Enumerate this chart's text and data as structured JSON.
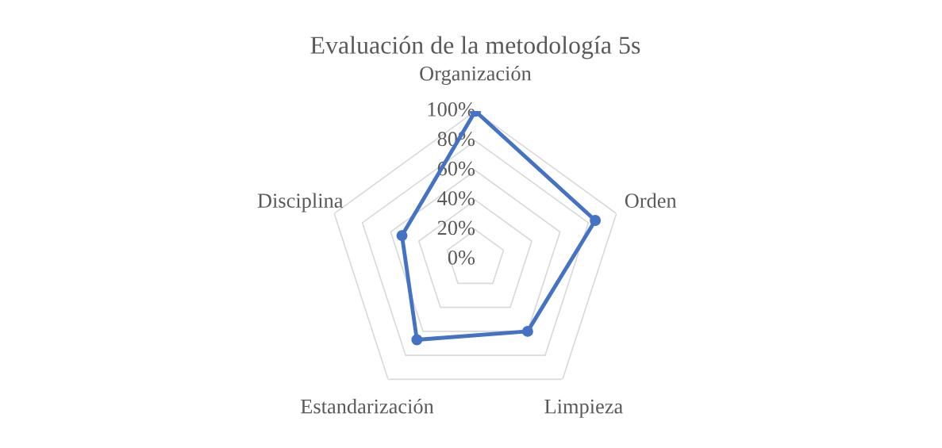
{
  "chart_data": {
    "type": "radar",
    "title": "Evaluación de la metodología 5s",
    "categories": [
      "Organización",
      "Orden",
      "Limpieza",
      "Estandarización",
      "Disciplina"
    ],
    "series": [
      {
        "color": "#4472c4",
        "values": [
          100,
          85,
          60,
          67,
          52
        ]
      }
    ],
    "ylim": [
      0,
      100
    ],
    "yticks": [
      {
        "value": 0,
        "label": "0%"
      },
      {
        "value": 20,
        "label": "20%"
      },
      {
        "value": 40,
        "label": "40%"
      },
      {
        "value": 60,
        "label": "60%"
      },
      {
        "value": 80,
        "label": "80%"
      },
      {
        "value": 100,
        "label": "100%"
      }
    ],
    "grid": true,
    "marker": "circle"
  }
}
